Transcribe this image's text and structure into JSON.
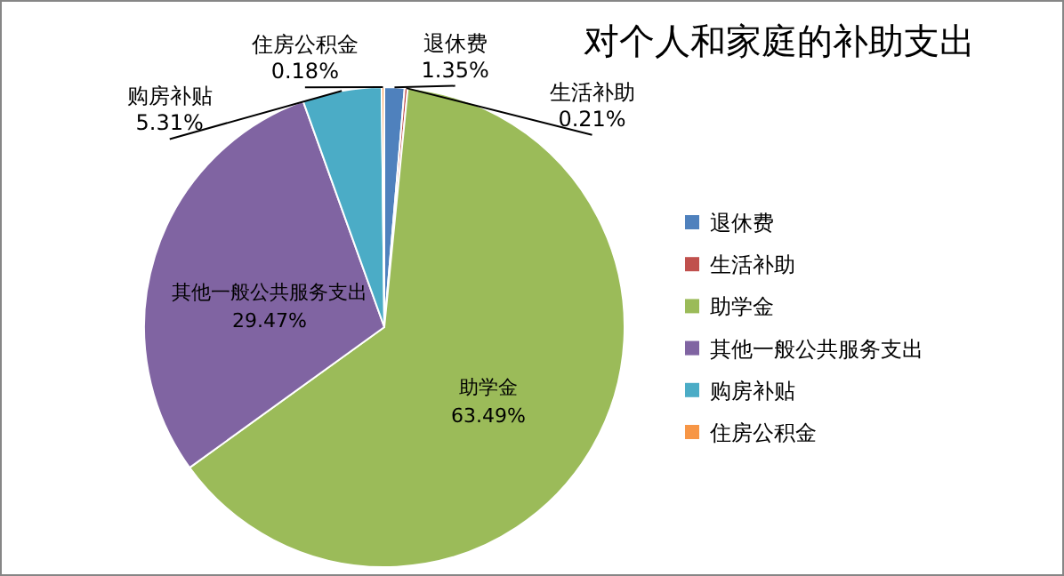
{
  "chart_data": {
    "type": "pie",
    "title": "对个人和家庭的补助支出",
    "categories": [
      "退休费",
      "生活补助",
      "助学金",
      "其他一般公共服务支出",
      "购房补贴",
      "住房公积金"
    ],
    "values": [
      1.35,
      0.21,
      63.49,
      29.47,
      5.31,
      0.18
    ],
    "colors": [
      "#4f81bd",
      "#c0504d",
      "#9bbb59",
      "#8064a2",
      "#4bacc6",
      "#f79646"
    ],
    "value_labels": [
      "1.35%",
      "0.21%",
      "63.49%",
      "29.47%",
      "5.31%",
      "0.18%"
    ],
    "legend": "right"
  }
}
